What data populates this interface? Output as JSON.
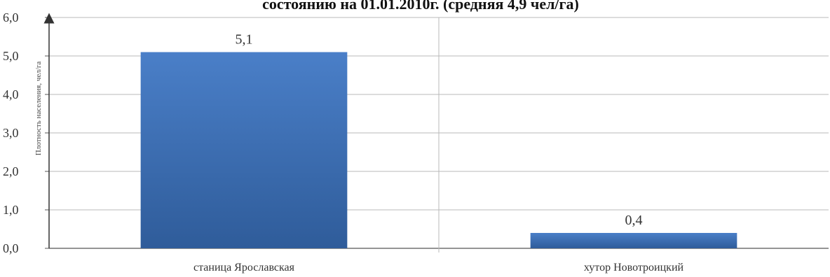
{
  "chart_data": {
    "type": "bar",
    "title": "состоянию на 01.01.2010г. (средняя 4,9 чел/га)",
    "ylabel": "Плотность населения, чел/га",
    "xlabel": "",
    "categories": [
      "станица Ярославская",
      "хутор Новотроицкий"
    ],
    "values": [
      5.1,
      0.4
    ],
    "value_labels": [
      "5,1",
      "0,4"
    ],
    "ylim": [
      0,
      6
    ],
    "y_ticks": [
      0,
      1,
      2,
      3,
      4,
      5,
      6
    ],
    "y_tick_labels": [
      "0,0",
      "1,0",
      "2,0",
      "3,0",
      "4,0",
      "5,0",
      "6,0"
    ],
    "grid": true,
    "legend": "none",
    "colors": {
      "bar_top": "#4a7fc8",
      "bar_bottom": "#2f5c9a",
      "grid": "#b9b9b9",
      "axis": "#555555"
    }
  }
}
